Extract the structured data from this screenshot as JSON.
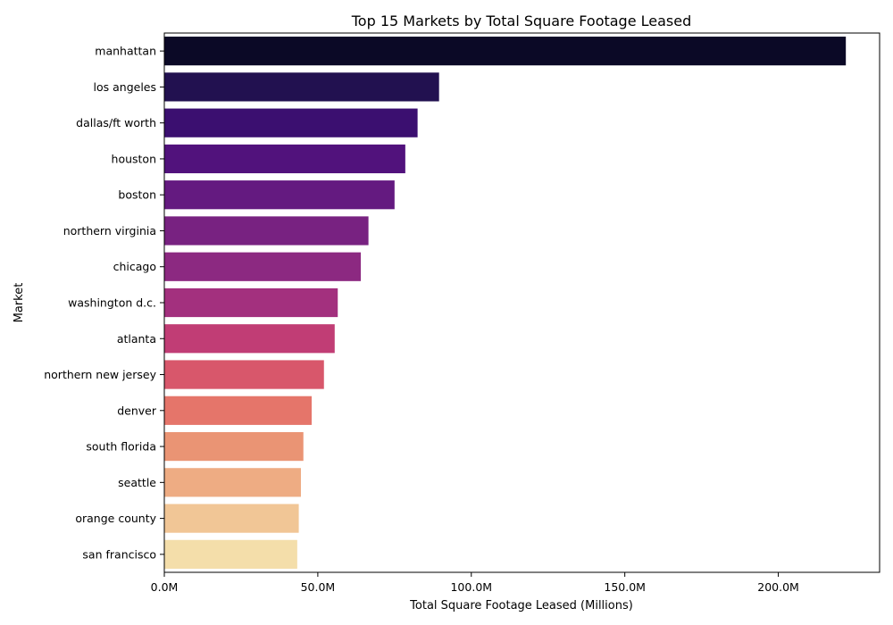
{
  "chart_data": {
    "type": "bar",
    "orientation": "horizontal",
    "title": "Top 15 Markets by Total Square Footage Leased",
    "xlabel": "Total Square Footage Leased (Millions)",
    "ylabel": "Market",
    "xlim": [
      0,
      233
    ],
    "x_ticks": [
      0,
      50,
      100,
      150,
      200
    ],
    "x_tick_labels": [
      "0.0M",
      "50.0M",
      "100.0M",
      "150.0M",
      "200.0M"
    ],
    "categories": [
      "manhattan",
      "los angeles",
      "dallas/ft worth",
      "houston",
      "boston",
      "northern virginia",
      "chicago",
      "washington d.c.",
      "atlanta",
      "northern new jersey",
      "denver",
      "south florida",
      "seattle",
      "orange county",
      "san francisco"
    ],
    "values": [
      222.0,
      89.5,
      82.5,
      78.5,
      75.0,
      66.5,
      64.0,
      56.5,
      55.5,
      52.0,
      48.0,
      45.3,
      44.5,
      43.8,
      43.3
    ],
    "colors": [
      "#0b0926",
      "#221150",
      "#3b0f70",
      "#51127c",
      "#641a80",
      "#782281",
      "#8c2981",
      "#a3307e",
      "#c13d75",
      "#d8576b",
      "#e5756a",
      "#ea9474",
      "#eeac83",
      "#f1c696",
      "#f4deaa"
    ],
    "grid": false,
    "legend": "none"
  }
}
